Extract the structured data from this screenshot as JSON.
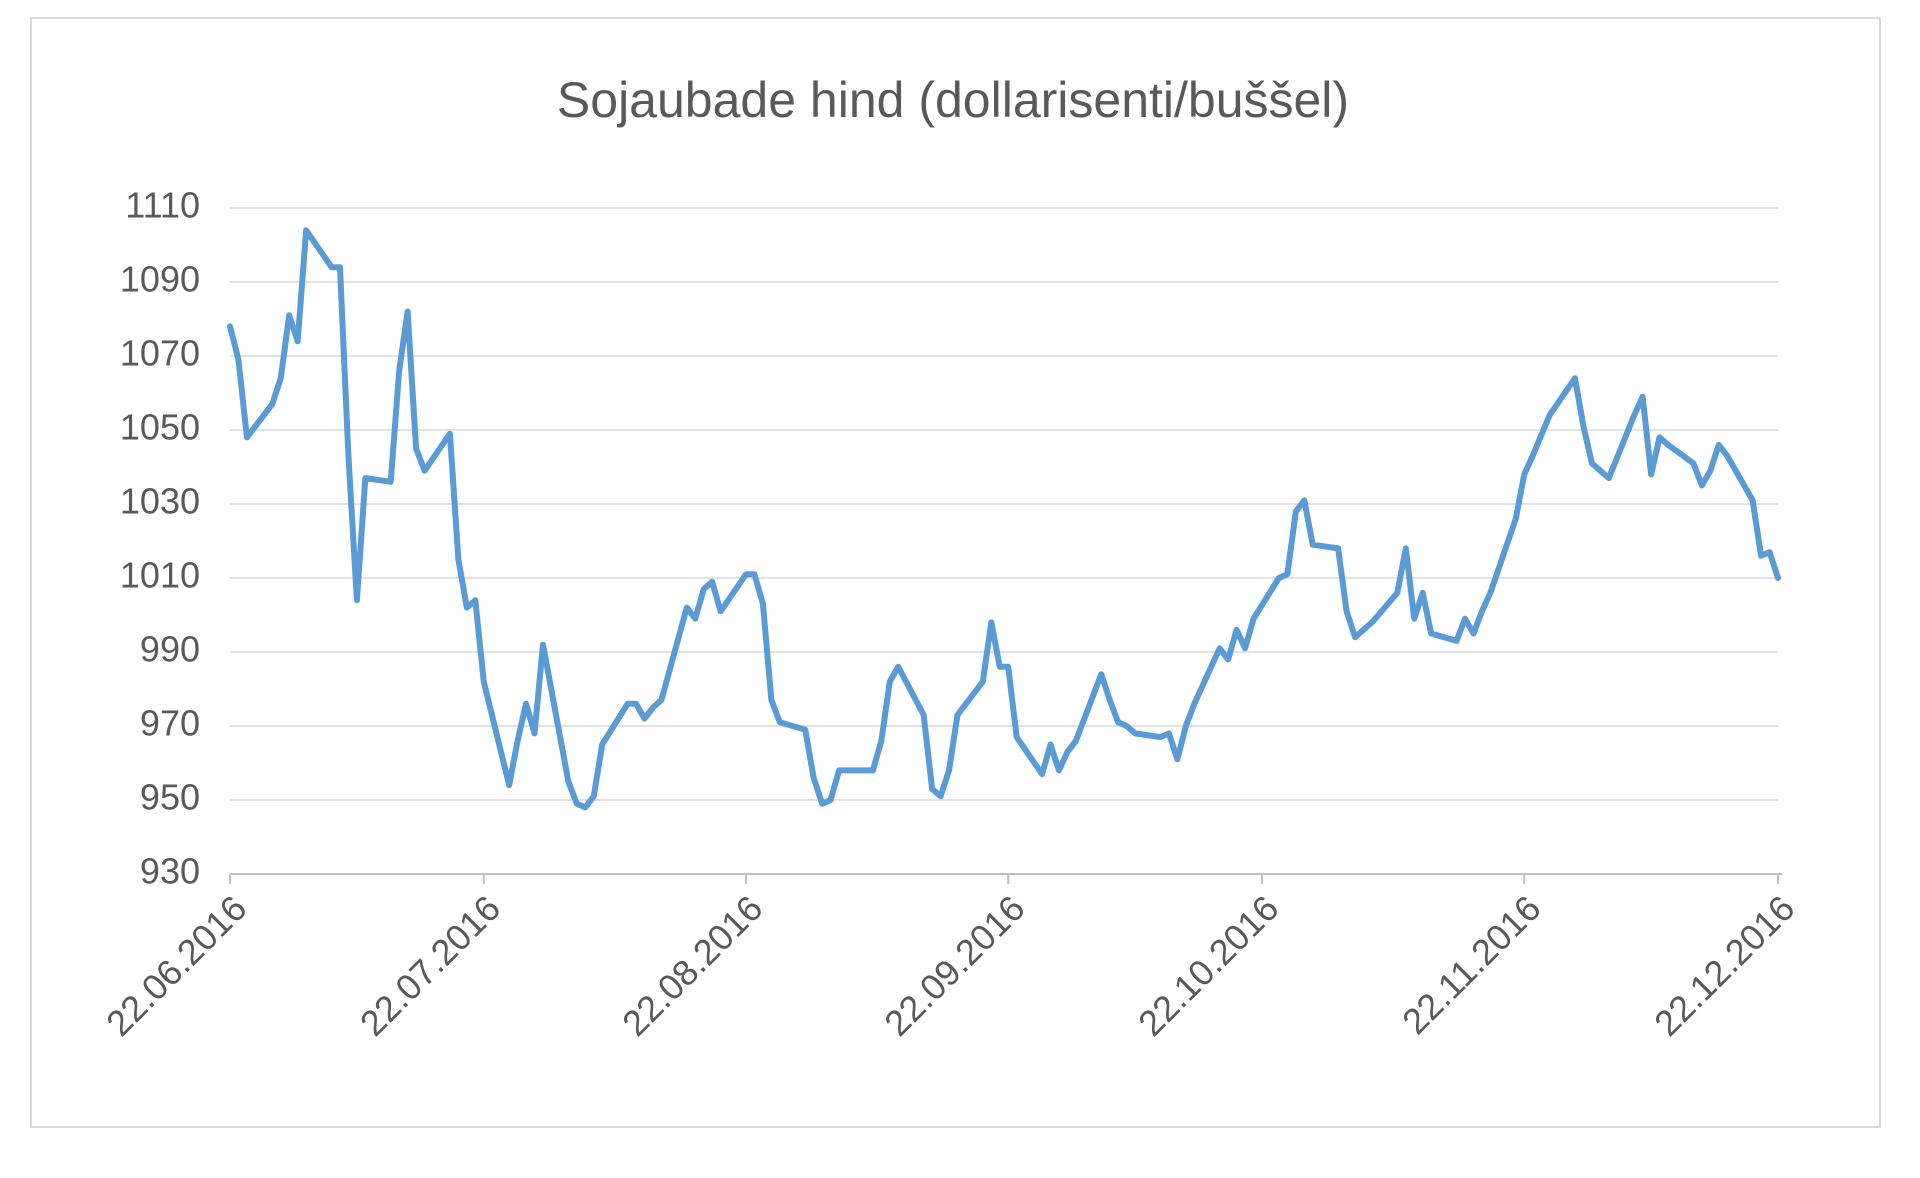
{
  "chart_data": {
    "type": "line",
    "title": "Sojaubade hind (dollarisenti/buššel)",
    "color": "#5b9bd5",
    "grid": true,
    "x": [
      "2016-06-22",
      "2016-06-23",
      "2016-06-24",
      "2016-06-27",
      "2016-06-28",
      "2016-06-29",
      "2016-06-30",
      "2016-07-01",
      "2016-07-04",
      "2016-07-05",
      "2016-07-06",
      "2016-07-07",
      "2016-07-08",
      "2016-07-11",
      "2016-07-12",
      "2016-07-13",
      "2016-07-14",
      "2016-07-15",
      "2016-07-18",
      "2016-07-19",
      "2016-07-20",
      "2016-07-21",
      "2016-07-22",
      "2016-07-25",
      "2016-07-26",
      "2016-07-27",
      "2016-07-28",
      "2016-07-29",
      "2016-08-01",
      "2016-08-02",
      "2016-08-03",
      "2016-08-04",
      "2016-08-05",
      "2016-08-08",
      "2016-08-09",
      "2016-08-10",
      "2016-08-11",
      "2016-08-12",
      "2016-08-15",
      "2016-08-16",
      "2016-08-17",
      "2016-08-18",
      "2016-08-19",
      "2016-08-22",
      "2016-08-23",
      "2016-08-24",
      "2016-08-25",
      "2016-08-26",
      "2016-08-29",
      "2016-08-30",
      "2016-08-31",
      "2016-09-01",
      "2016-09-02",
      "2016-09-06",
      "2016-09-07",
      "2016-09-08",
      "2016-09-09",
      "2016-09-12",
      "2016-09-13",
      "2016-09-14",
      "2016-09-15",
      "2016-09-16",
      "2016-09-19",
      "2016-09-20",
      "2016-09-21",
      "2016-09-22",
      "2016-09-23",
      "2016-09-26",
      "2016-09-27",
      "2016-09-28",
      "2016-09-29",
      "2016-09-30",
      "2016-10-03",
      "2016-10-04",
      "2016-10-05",
      "2016-10-06",
      "2016-10-07",
      "2016-10-10",
      "2016-10-11",
      "2016-10-12",
      "2016-10-13",
      "2016-10-14",
      "2016-10-17",
      "2016-10-18",
      "2016-10-19",
      "2016-10-20",
      "2016-10-21",
      "2016-10-24",
      "2016-10-25",
      "2016-10-26",
      "2016-10-27",
      "2016-10-28",
      "2016-10-31",
      "2016-11-01",
      "2016-11-02",
      "2016-11-03",
      "2016-11-04",
      "2016-11-07",
      "2016-11-08",
      "2016-11-09",
      "2016-11-10",
      "2016-11-11",
      "2016-11-14",
      "2016-11-15",
      "2016-11-16",
      "2016-11-17",
      "2016-11-18",
      "2016-11-21",
      "2016-11-22",
      "2016-11-23",
      "2016-11-25",
      "2016-11-28",
      "2016-11-29",
      "2016-11-30",
      "2016-12-01",
      "2016-12-02",
      "2016-12-05",
      "2016-12-06",
      "2016-12-07",
      "2016-12-08",
      "2016-12-09",
      "2016-12-12",
      "2016-12-13",
      "2016-12-14",
      "2016-12-15",
      "2016-12-16",
      "2016-12-19",
      "2016-12-20",
      "2016-12-21",
      "2016-12-22"
    ],
    "values": [
      1078,
      1069,
      1048,
      1057,
      1064,
      1081,
      1074,
      1104,
      1094,
      1094,
      1043,
      1004,
      1037,
      1036,
      1066,
      1082,
      1045,
      1039,
      1049,
      1015,
      1002,
      1004,
      982,
      954,
      966,
      976,
      968,
      992,
      955,
      949,
      948,
      951,
      965,
      976,
      976,
      972,
      975,
      977,
      1002,
      999,
      1007,
      1009,
      1001,
      1011,
      1011,
      1003,
      977,
      971,
      969,
      956,
      949,
      950,
      958,
      958,
      966,
      982,
      986,
      973,
      953,
      951,
      958,
      973,
      982,
      998,
      986,
      986,
      967,
      957,
      965,
      958,
      963,
      966,
      984,
      977,
      971,
      970,
      968,
      967,
      968,
      961,
      970,
      976,
      991,
      988,
      996,
      991,
      999,
      1010,
      1011,
      1028,
      1031,
      1019,
      1018,
      1001,
      994,
      996,
      998,
      1006,
      1018,
      999,
      1006,
      995,
      993,
      999,
      995,
      1001,
      1006,
      1026,
      1038,
      1043,
      1054,
      1064,
      1051,
      1041,
      1039,
      1037,
      1054,
      1059,
      1038,
      1048,
      1046,
      1041,
      1035,
      1039,
      1046,
      1043,
      1031,
      1016,
      1017,
      1010
    ],
    "xlim": [
      "2016-06-22",
      "2016-12-22"
    ],
    "xticks": [
      {
        "value": "2016-06-22",
        "label": "22.06.2016"
      },
      {
        "value": "2016-07-22",
        "label": "22.07.2016"
      },
      {
        "value": "2016-08-22",
        "label": "22.08.2016"
      },
      {
        "value": "2016-09-22",
        "label": "22.09.2016"
      },
      {
        "value": "2016-10-22",
        "label": "22.10.2016"
      },
      {
        "value": "2016-11-22",
        "label": "22.11.2016"
      },
      {
        "value": "2016-12-22",
        "label": "22.12.2016"
      }
    ],
    "ylim": [
      930,
      1110
    ],
    "yticks": [
      930,
      950,
      970,
      990,
      1010,
      1030,
      1050,
      1070,
      1090,
      1110
    ]
  }
}
